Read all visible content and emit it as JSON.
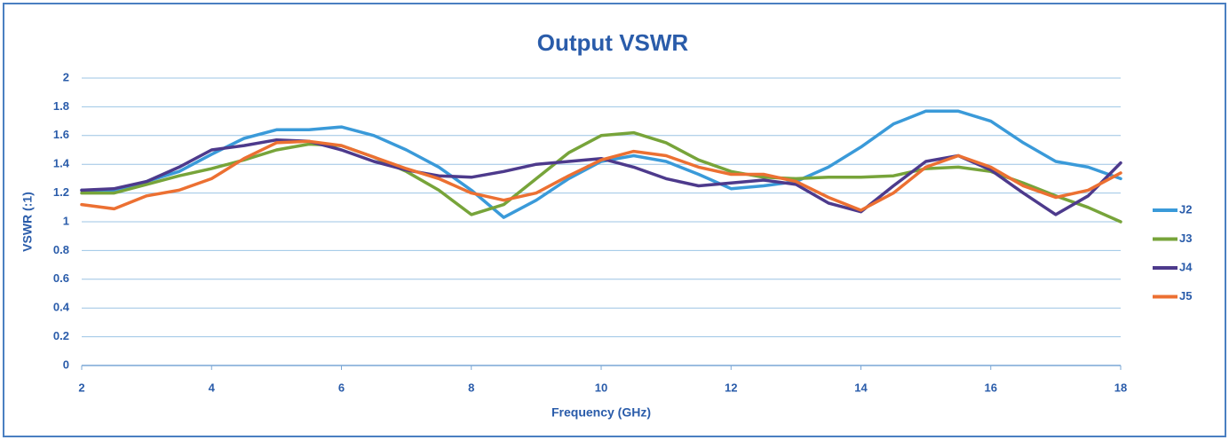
{
  "chart_data": {
    "type": "line",
    "title": "Output VSWR",
    "xlabel": "Frequency (GHz)",
    "ylabel": "VSWR (:1)",
    "x": [
      2,
      2.5,
      3,
      3.5,
      4,
      4.5,
      5,
      5.5,
      6,
      6.5,
      7,
      7.5,
      8,
      8.5,
      9,
      9.5,
      10,
      10.5,
      11,
      11.5,
      12,
      12.5,
      13,
      13.5,
      14,
      14.5,
      15,
      15.5,
      16,
      16.5,
      17,
      17.5,
      18
    ],
    "series": [
      {
        "name": "J2",
        "color": "#3a9ad9",
        "values": [
          1.22,
          1.21,
          1.28,
          1.35,
          1.47,
          1.58,
          1.64,
          1.64,
          1.66,
          1.6,
          1.5,
          1.38,
          1.22,
          1.03,
          1.15,
          1.3,
          1.42,
          1.46,
          1.42,
          1.33,
          1.23,
          1.25,
          1.28,
          1.38,
          1.52,
          1.68,
          1.77,
          1.77,
          1.7,
          1.55,
          1.42,
          1.38,
          1.3
        ]
      },
      {
        "name": "J3",
        "color": "#77a43a",
        "values": [
          1.2,
          1.2,
          1.26,
          1.32,
          1.37,
          1.43,
          1.5,
          1.54,
          1.53,
          1.45,
          1.35,
          1.22,
          1.05,
          1.12,
          1.3,
          1.48,
          1.6,
          1.62,
          1.55,
          1.43,
          1.35,
          1.31,
          1.3,
          1.31,
          1.31,
          1.32,
          1.37,
          1.38,
          1.35,
          1.27,
          1.18,
          1.1,
          1.0
        ]
      },
      {
        "name": "J4",
        "color": "#4d3a8c",
        "values": [
          1.22,
          1.23,
          1.28,
          1.38,
          1.5,
          1.53,
          1.57,
          1.56,
          1.5,
          1.42,
          1.36,
          1.32,
          1.31,
          1.35,
          1.4,
          1.42,
          1.44,
          1.38,
          1.3,
          1.25,
          1.27,
          1.29,
          1.26,
          1.13,
          1.07,
          1.25,
          1.42,
          1.46,
          1.36,
          1.2,
          1.05,
          1.18,
          1.41
        ]
      },
      {
        "name": "J5",
        "color": "#ec7032",
        "values": [
          1.12,
          1.09,
          1.18,
          1.22,
          1.3,
          1.44,
          1.55,
          1.56,
          1.53,
          1.45,
          1.37,
          1.3,
          1.2,
          1.15,
          1.2,
          1.32,
          1.43,
          1.49,
          1.46,
          1.38,
          1.33,
          1.33,
          1.28,
          1.17,
          1.08,
          1.2,
          1.38,
          1.46,
          1.38,
          1.25,
          1.17,
          1.22,
          1.34
        ]
      }
    ],
    "xlim": [
      2,
      18
    ],
    "ylim": [
      0,
      2
    ],
    "xticks": [
      2,
      4,
      6,
      8,
      10,
      12,
      14,
      16,
      18
    ],
    "yticks": [
      0,
      0.2,
      0.4,
      0.6,
      0.8,
      1,
      1.2,
      1.4,
      1.6,
      1.8,
      2
    ],
    "grid": true,
    "legend": "right"
  }
}
